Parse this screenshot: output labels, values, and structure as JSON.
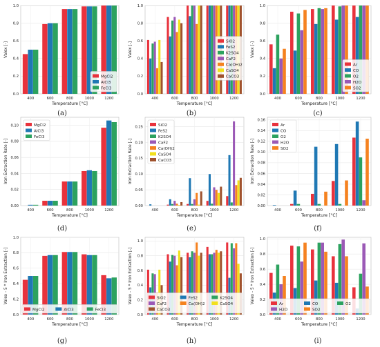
{
  "colors": {
    "MgCl2": "#e8323c",
    "AlCl3": "#1f78b4",
    "FeCl3": "#2ca25f",
    "SiO2": "#e8323c",
    "FeS2": "#1f78b4",
    "K2SO4": "#2ca25f",
    "CaF2": "#9b59b6",
    "Ca(OH)2": "#f58220",
    "CaSO4": "#f2e01c",
    "CaCO3": "#a0522d",
    "Ar": "#e8323c",
    "CO": "#1f78b4",
    "O2": "#2ca25f",
    "H2O": "#9b59b6",
    "SO2": "#f58220"
  },
  "chart_data": [
    {
      "id": "a",
      "caption": "(a)",
      "type": "bar",
      "categories": [
        "400",
        "600",
        "800",
        "1000",
        "1200"
      ],
      "xlabel": "Temperature [°C]",
      "ylabel": "Valex [-]",
      "ylim": [
        0,
        1.0
      ],
      "yticks": [
        "0.0",
        "0.2",
        "0.4",
        "0.6",
        "0.8",
        "1.0"
      ],
      "ytick_values": [
        0,
        0.2,
        0.4,
        0.6,
        0.8,
        1.0
      ],
      "legend_position": "lower-right",
      "legend_cols": 1,
      "series": [
        {
          "name": "MgCl2",
          "values": [
            0.45,
            0.79,
            0.96,
            0.99,
            1.0
          ]
        },
        {
          "name": "AlCl3",
          "values": [
            0.5,
            0.8,
            0.96,
            0.99,
            1.0
          ]
        },
        {
          "name": "FeCl3",
          "values": [
            0.5,
            0.8,
            0.96,
            0.99,
            1.0
          ]
        }
      ]
    },
    {
      "id": "b",
      "caption": "(b)",
      "type": "bar",
      "categories": [
        "400",
        "600",
        "800",
        "1000",
        "1200"
      ],
      "xlabel": "Temperature [°C]",
      "ylabel": "Valex [-]",
      "ylim": [
        0,
        1.0
      ],
      "yticks": [
        "0.0",
        "0.2",
        "0.4",
        "0.6",
        "0.8",
        "1.0"
      ],
      "ytick_values": [
        0,
        0.2,
        0.4,
        0.6,
        0.8,
        1.0
      ],
      "legend_position": "right",
      "legend_cols": 1,
      "series": [
        {
          "name": "SiO2",
          "values": [
            0.61,
            0.87,
            1.0,
            1.0,
            1.0
          ]
        },
        {
          "name": "FeS2",
          "values": [
            0.4,
            0.65,
            0.88,
            1.0,
            1.0
          ]
        },
        {
          "name": "K2SO4",
          "values": [
            0.57,
            0.83,
            1.0,
            1.0,
            1.0
          ]
        },
        {
          "name": "CaF2",
          "values": [
            0.59,
            0.87,
            1.0,
            1.0,
            1.0
          ]
        },
        {
          "name": "Ca(OH)2",
          "values": [
            0.29,
            0.7,
            0.79,
            1.0,
            1.0
          ]
        },
        {
          "name": "CaSO4",
          "values": [
            0.61,
            0.84,
            1.0,
            1.0,
            1.0
          ]
        },
        {
          "name": "CaCO3",
          "values": [
            0.36,
            0.8,
            1.0,
            1.0,
            1.0
          ]
        }
      ]
    },
    {
      "id": "c",
      "caption": "(c)",
      "type": "bar",
      "categories": [
        "400",
        "600",
        "800",
        "1000",
        "1200"
      ],
      "xlabel": "Temperature [°C]",
      "ylabel": "Valex [-]",
      "ylim": [
        0,
        1.0
      ],
      "yticks": [
        "0.0",
        "0.2",
        "0.4",
        "0.6",
        "0.8",
        "1.0"
      ],
      "ytick_values": [
        0,
        0.2,
        0.4,
        0.6,
        0.8,
        1.0
      ],
      "legend_position": "lower-right",
      "legend_cols": 1,
      "series": [
        {
          "name": "Ar",
          "values": [
            0.56,
            0.93,
            0.96,
            1.0,
            1.0
          ]
        },
        {
          "name": "CO",
          "values": [
            0.29,
            0.49,
            0.79,
            0.84,
            0.87
          ]
        },
        {
          "name": "O2",
          "values": [
            0.67,
            0.91,
            0.97,
            0.99,
            1.0
          ]
        },
        {
          "name": "H2O",
          "values": [
            0.4,
            0.72,
            0.96,
            1.0,
            1.0
          ]
        },
        {
          "name": "SO2",
          "values": [
            0.51,
            0.95,
            0.97,
            1.0,
            1.0
          ]
        }
      ]
    },
    {
      "id": "d",
      "caption": "(d)",
      "type": "bar",
      "categories": [
        "400",
        "600",
        "800",
        "1000",
        "1200"
      ],
      "xlabel": "Temperature [°C]",
      "ylabel": "Iron Extraction Rate [-]",
      "ylim": [
        0,
        0.11
      ],
      "yticks": [
        "0.00",
        "0.02",
        "0.04",
        "0.06",
        "0.08",
        "0.10"
      ],
      "ytick_values": [
        0,
        0.02,
        0.04,
        0.06,
        0.08,
        0.1
      ],
      "legend_position": "top-left",
      "legend_cols": 1,
      "series": [
        {
          "name": "MgCl2",
          "values": [
            0.0,
            0.006,
            0.03,
            0.043,
            0.097
          ]
        },
        {
          "name": "AlCl3",
          "values": [
            0.001,
            0.006,
            0.03,
            0.044,
            0.106
          ]
        },
        {
          "name": "FeCl3",
          "values": [
            0.001,
            0.006,
            0.03,
            0.043,
            0.104
          ]
        }
      ]
    },
    {
      "id": "e",
      "caption": "(e)",
      "type": "bar",
      "categories": [
        "400",
        "600",
        "800",
        "1000",
        "1200"
      ],
      "xlabel": "Temperature [°C]",
      "ylabel": "Iron Extraction Rate [-]",
      "ylim": [
        0,
        0.28
      ],
      "yticks": [
        "0.00",
        "0.05",
        "0.10",
        "0.15",
        "0.20",
        "0.25"
      ],
      "ytick_values": [
        0,
        0.05,
        0.1,
        0.15,
        0.2,
        0.25
      ],
      "legend_position": "top-left",
      "legend_cols": 1,
      "series": [
        {
          "name": "SiO2",
          "values": [
            0.0,
            0.003,
            0.005,
            0.015,
            0.03
          ]
        },
        {
          "name": "FeS2",
          "values": [
            0.004,
            0.02,
            0.087,
            0.1,
            0.16
          ]
        },
        {
          "name": "K2SO4",
          "values": [
            0.0,
            0.005,
            0.005,
            0.006,
            0.01
          ]
        },
        {
          "name": "CaF2",
          "values": [
            0.0,
            0.015,
            0.02,
            0.058,
            0.267
          ]
        },
        {
          "name": "Ca(OH)2",
          "values": [
            0.0,
            0.006,
            0.04,
            0.05,
            0.065
          ]
        },
        {
          "name": "CaSO4",
          "values": [
            0.0,
            0.002,
            0.003,
            0.04,
            0.08
          ]
        },
        {
          "name": "CaCO3",
          "values": [
            0.0,
            0.011,
            0.045,
            0.06,
            0.088
          ]
        }
      ]
    },
    {
      "id": "f",
      "caption": "(f)",
      "type": "bar",
      "categories": [
        "400",
        "600",
        "800",
        "1000",
        "1200"
      ],
      "xlabel": "Temperature [°C]",
      "ylabel": "Iron Extraction Rate [-]",
      "ylim": [
        0,
        0.165
      ],
      "yticks": [
        "0.00",
        "0.02",
        "0.04",
        "0.06",
        "0.08",
        "0.10",
        "0.12",
        "0.14",
        "0.16"
      ],
      "ytick_values": [
        0,
        0.02,
        0.04,
        0.06,
        0.08,
        0.1,
        0.12,
        0.14,
        0.16
      ],
      "legend_position": "top-left",
      "legend_cols": 1,
      "series": [
        {
          "name": "Ar",
          "values": [
            0.0,
            0.003,
            0.022,
            0.046,
            0.127
          ]
        },
        {
          "name": "CO",
          "values": [
            0.001,
            0.028,
            0.11,
            0.115,
            0.157
          ]
        },
        {
          "name": "O2",
          "values": [
            0.0,
            0.003,
            0.003,
            0.003,
            0.09
          ]
        },
        {
          "name": "H2O",
          "values": [
            0.0,
            0.0,
            0.0,
            0.0,
            0.01
          ]
        },
        {
          "name": "SO2",
          "values": [
            0.0,
            0.0,
            0.026,
            0.047,
            0.125
          ]
        }
      ]
    },
    {
      "id": "g",
      "caption": "(g)",
      "type": "bar",
      "categories": [
        "400",
        "600",
        "800",
        "1000",
        "1200"
      ],
      "xlabel": "Temperature [°C]",
      "ylabel": "Valex - 5 * Iron Extraction [-]",
      "ylim": [
        0,
        1.0
      ],
      "yticks": [
        "0.0",
        "0.2",
        "0.4",
        "0.6",
        "0.8",
        "1.0"
      ],
      "ytick_values": [
        0,
        0.2,
        0.4,
        0.6,
        0.8,
        1.0
      ],
      "legend_position": "bottom",
      "legend_cols": 3,
      "series": [
        {
          "name": "MgCl2",
          "values": [
            0.45,
            0.76,
            0.81,
            0.78,
            0.51
          ]
        },
        {
          "name": "AlCl3",
          "values": [
            0.5,
            0.77,
            0.81,
            0.77,
            0.47
          ]
        },
        {
          "name": "FeCl3",
          "values": [
            0.5,
            0.77,
            0.81,
            0.77,
            0.48
          ]
        }
      ]
    },
    {
      "id": "h",
      "caption": "(h)",
      "type": "bar",
      "categories": [
        "400",
        "600",
        "800",
        "1000",
        "1200"
      ],
      "xlabel": "Temperature [°C]",
      "ylabel": "Valex - 5 * Iron Extraction [-]",
      "ylim": [
        0,
        1.05
      ],
      "yticks": [
        "0.0",
        "0.2",
        "0.4",
        "0.6",
        "0.8",
        "1.0"
      ],
      "ytick_values": [
        0,
        0.2,
        0.4,
        0.6,
        0.8,
        1.0
      ],
      "legend_position": "bottom",
      "legend_cols": 3,
      "series": [
        {
          "name": "SiO2",
          "values": [
            0.61,
            0.82,
            0.84,
            0.92,
            0.98
          ]
        },
        {
          "name": "FeS2",
          "values": [
            0.37,
            0.72,
            0.78,
            0.82,
            0.5
          ]
        },
        {
          "name": "K2SO4",
          "values": [
            0.56,
            0.81,
            0.86,
            0.82,
            0.97
          ]
        },
        {
          "name": "CaF2",
          "values": [
            0.55,
            0.8,
            0.84,
            0.84,
            0.9
          ]
        },
        {
          "name": "Ca(OH)2",
          "values": [
            0.3,
            0.67,
            0.98,
            0.88,
            0.97
          ]
        },
        {
          "name": "CaSO4",
          "values": [
            0.61,
            0.87,
            0.8,
            0.84,
            0.69
          ]
        },
        {
          "name": "CaCO3",
          "values": [
            0.4,
            0.78,
            0.84,
            0.86,
            0.56
          ]
        }
      ]
    },
    {
      "id": "i",
      "caption": "(i)",
      "type": "bar",
      "categories": [
        "400",
        "600",
        "800",
        "1000",
        "1200"
      ],
      "xlabel": "Temperature [°C]",
      "ylabel": "Valex - 5 * Iron Extraction [-]",
      "ylim": [
        0,
        1.02
      ],
      "yticks": [
        "0.0",
        "0.2",
        "0.4",
        "0.6",
        "0.8",
        "1.0"
      ],
      "ytick_values": [
        0,
        0.2,
        0.4,
        0.6,
        0.8,
        1.0
      ],
      "legend_position": "bottom",
      "legend_cols": 3,
      "series": [
        {
          "name": "Ar",
          "values": [
            0.55,
            0.91,
            0.86,
            0.77,
            0.36
          ]
        },
        {
          "name": "CO",
          "values": [
            0.29,
            0.35,
            0.45,
            0.42,
            0.08
          ]
        },
        {
          "name": "O2",
          "values": [
            0.66,
            0.9,
            0.95,
            0.93,
            0.54
          ]
        },
        {
          "name": "H2O",
          "values": [
            0.4,
            0.7,
            0.95,
            0.99,
            0.94
          ]
        },
        {
          "name": "SO2",
          "values": [
            0.51,
            0.95,
            0.83,
            0.77,
            0.37
          ]
        }
      ]
    }
  ]
}
